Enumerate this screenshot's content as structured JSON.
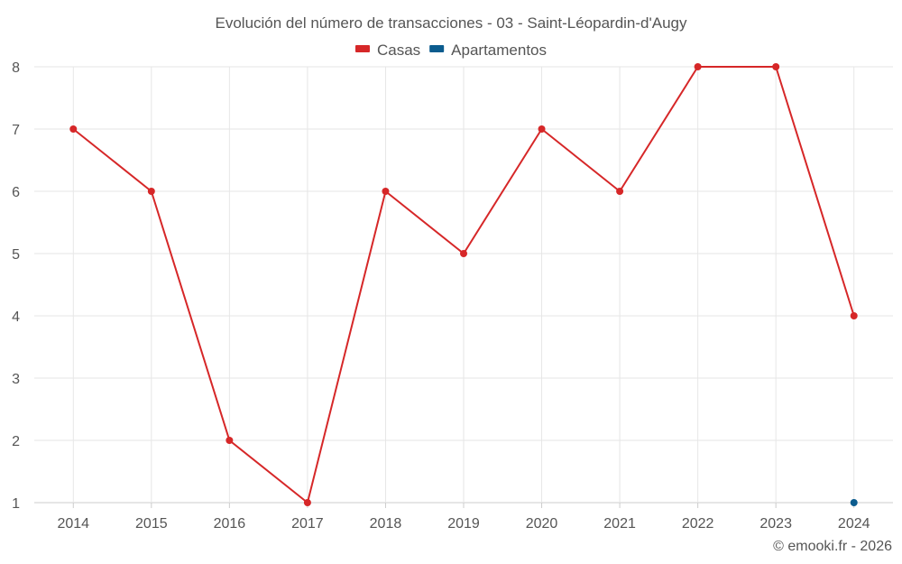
{
  "chart_data": {
    "type": "line",
    "title": "Evolución del número de transacciones - 03 - Saint-Léopardin-d'Augy",
    "categories": [
      "2014",
      "2015",
      "2016",
      "2017",
      "2018",
      "2019",
      "2020",
      "2021",
      "2022",
      "2023",
      "2024"
    ],
    "series": [
      {
        "name": "Casas",
        "color": "#d62728",
        "values": [
          7,
          6,
          2,
          1,
          6,
          5,
          7,
          6,
          8,
          8,
          4
        ]
      },
      {
        "name": "Apartamentos",
        "color": "#0b5c8e",
        "values": [
          null,
          null,
          null,
          null,
          null,
          null,
          null,
          null,
          null,
          null,
          1
        ]
      }
    ],
    "ylim": [
      1,
      8
    ],
    "yticks": [
      1,
      2,
      3,
      4,
      5,
      6,
      7,
      8
    ],
    "xlabel": "",
    "ylabel": "",
    "grid": true,
    "legend": "top-center"
  },
  "footer": {
    "copyright": "© emooki.fr - 2026"
  }
}
